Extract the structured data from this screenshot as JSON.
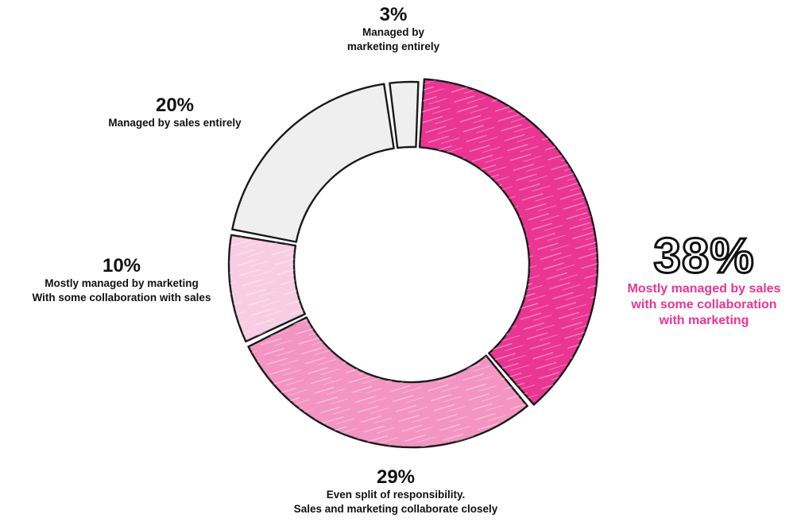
{
  "chart_data": {
    "type": "donut",
    "slices": [
      {
        "label": "Mostly managed by sales\nwith some collaboration\nwith marketing",
        "pct_label": "38%",
        "value": 38,
        "color": "#ea3593"
      },
      {
        "label": "Even split of responsibility.\nSales and marketing collaborate closely",
        "pct_label": "29%",
        "value": 29,
        "color": "#f394c2"
      },
      {
        "label": "Mostly managed by marketing\nWith some collaboration with sales",
        "pct_label": "10%",
        "value": 10,
        "color": "#f8cde3"
      },
      {
        "label": "Managed by sales entirely",
        "pct_label": "20%",
        "value": 20,
        "color": "#efefef"
      },
      {
        "label": "Managed by\nmarketing entirely",
        "pct_label": "3%",
        "value": 3,
        "color": "#efefef"
      }
    ]
  }
}
